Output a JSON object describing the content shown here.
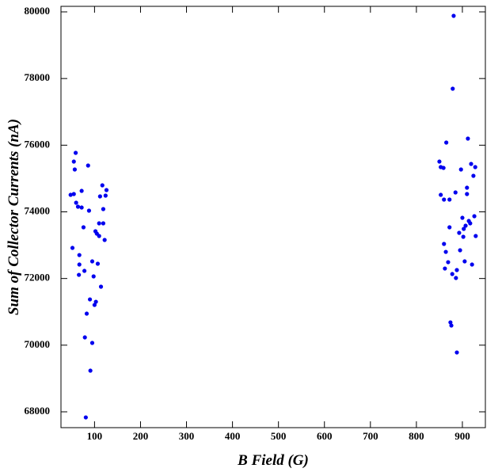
{
  "chart_data": {
    "type": "scatter",
    "x_label": "B Field (G)",
    "y_label": "Sum of Collector Currents (nA)",
    "xlim": [
      27,
      950
    ],
    "ylim": [
      67525,
      80166
    ],
    "xticks": [
      100,
      200,
      300,
      400,
      500,
      600,
      700,
      800,
      900
    ],
    "yticks": [
      68000,
      70000,
      72000,
      74000,
      76000,
      78000,
      80000
    ],
    "series": [
      {
        "color": "#0000ee",
        "x": [
          52,
          48,
          55,
          55,
          59,
          57,
          60,
          64,
          72,
          72,
          76,
          67,
          67,
          66,
          78,
          86,
          88,
          95,
          98,
          103,
          100,
          90,
          83,
          79,
          95,
          91,
          81,
          102,
          105,
          110,
          107,
          114,
          112,
          117,
          119,
          119,
          110,
          124,
          126,
          122,
          881,
          879,
          865,
          912,
          850,
          853,
          859,
          897,
          919,
          928,
          924,
          853,
          860,
          872,
          885,
          910,
          910,
          872,
          914,
          917,
          926,
          900,
          907,
          903,
          893,
          902,
          929,
          860,
          864,
          895,
          869,
          905,
          921,
          862,
          888,
          878,
          886,
          874,
          876,
          888
        ],
        "values": [
          72918,
          74510,
          74534,
          75508,
          75770,
          75271,
          74273,
          74154,
          74130,
          74629,
          73536,
          72704,
          72419,
          72110,
          72229,
          75390,
          74035,
          72514,
          72063,
          71302,
          71207,
          71373,
          70946,
          70233,
          70067,
          69235,
          67833,
          73418,
          73346,
          73275,
          72443,
          71754,
          74463,
          74796,
          74083,
          73655,
          73655,
          74487,
          74653,
          73156,
          79881,
          77695,
          76079,
          76198,
          75508,
          75342,
          75318,
          75271,
          75437,
          75342,
          75081,
          74510,
          74368,
          74368,
          74582,
          74724,
          74534,
          73536,
          73726,
          73655,
          73869,
          73821,
          73584,
          73489,
          73370,
          73251,
          73275,
          73037,
          72799,
          72847,
          72490,
          72514,
          72419,
          72300,
          72253,
          72134,
          72015,
          70684,
          70589,
          69781
        ]
      }
    ]
  }
}
